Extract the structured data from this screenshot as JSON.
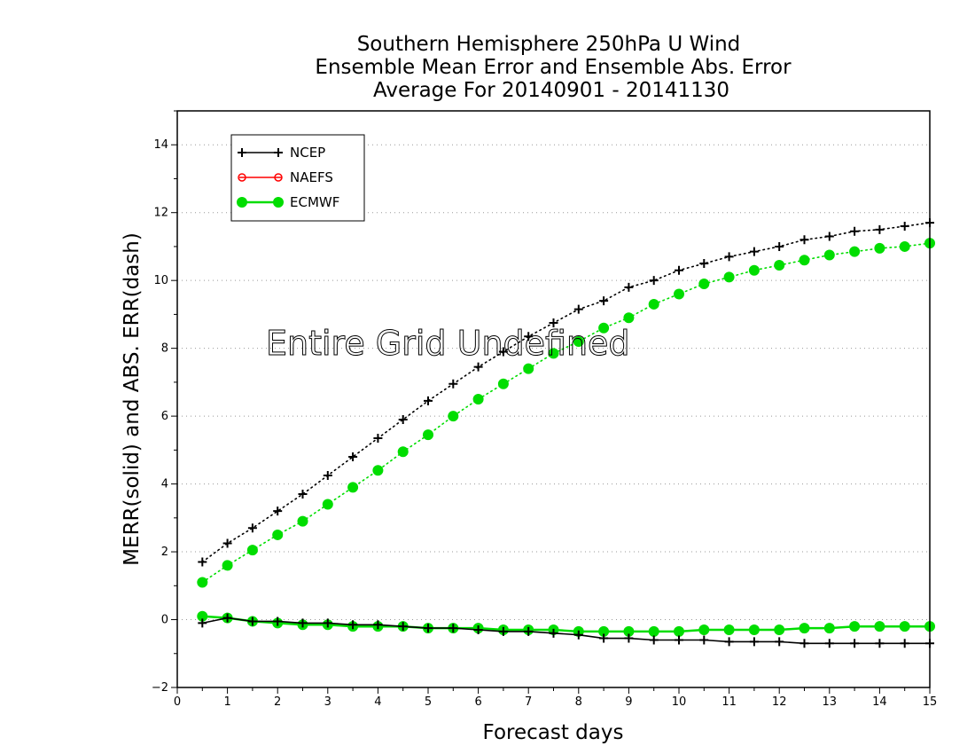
{
  "chart_data": {
    "type": "line",
    "title": [
      "Southern Hemisphere 250hPa U Wind",
      "Ensemble Mean Error and Ensemble Abs. Error",
      "Average For 20140901 - 20141130"
    ],
    "xlabel": "Forecast days",
    "ylabel": "MERR(solid) and ABS. ERR(dash)",
    "xlim": [
      0,
      15
    ],
    "ylim": [
      -2,
      15
    ],
    "xticks": [
      0,
      1,
      2,
      3,
      4,
      5,
      6,
      7,
      8,
      9,
      10,
      11,
      12,
      13,
      14,
      15
    ],
    "yticks": [
      -2,
      0,
      2,
      4,
      6,
      8,
      10,
      12,
      14
    ],
    "grid": "horizontal dotted",
    "legend_position": "top-left",
    "annotation": "Entire Grid Undefined",
    "x": [
      0.5,
      1,
      1.5,
      2,
      2.5,
      3,
      3.5,
      4,
      4.5,
      5,
      5.5,
      6,
      6.5,
      7,
      7.5,
      8,
      8.5,
      9,
      9.5,
      10,
      10.5,
      11,
      11.5,
      12,
      12.5,
      13,
      13.5,
      14,
      14.5,
      15
    ],
    "series": [
      {
        "name": "NCEP",
        "color": "#000000",
        "marker": "plus",
        "abs_err": [
          1.7,
          2.25,
          2.7,
          3.2,
          3.7,
          4.25,
          4.8,
          5.35,
          5.9,
          6.45,
          6.95,
          7.45,
          7.9,
          8.35,
          8.75,
          9.15,
          9.4,
          9.8,
          10.0,
          10.3,
          10.5,
          10.7,
          10.85,
          11.0,
          11.2,
          11.3,
          11.45,
          11.5,
          11.6,
          11.7
        ],
        "mean_err": [
          -0.1,
          0.05,
          -0.05,
          -0.05,
          -0.1,
          -0.1,
          -0.15,
          -0.15,
          -0.2,
          -0.25,
          -0.25,
          -0.3,
          -0.35,
          -0.35,
          -0.4,
          -0.45,
          -0.55,
          -0.55,
          -0.6,
          -0.6,
          -0.6,
          -0.65,
          -0.65,
          -0.65,
          -0.7,
          -0.7,
          -0.7,
          -0.7,
          -0.7,
          -0.7
        ]
      },
      {
        "name": "NAEFS",
        "color": "#ff0000",
        "marker": "open-circle",
        "abs_err": [],
        "mean_err": []
      },
      {
        "name": "ECMWF",
        "color": "#00dd00",
        "marker": "filled-circle",
        "abs_err": [
          1.1,
          1.6,
          2.05,
          2.5,
          2.9,
          3.4,
          3.9,
          4.4,
          4.95,
          5.45,
          6.0,
          6.5,
          6.95,
          7.4,
          7.85,
          8.2,
          8.6,
          8.9,
          9.3,
          9.6,
          9.9,
          10.1,
          10.3,
          10.45,
          10.6,
          10.75,
          10.85,
          10.95,
          11.0,
          11.1
        ],
        "mean_err": [
          0.1,
          0.05,
          -0.05,
          -0.1,
          -0.15,
          -0.15,
          -0.2,
          -0.2,
          -0.2,
          -0.25,
          -0.25,
          -0.25,
          -0.3,
          -0.3,
          -0.3,
          -0.35,
          -0.35,
          -0.35,
          -0.35,
          -0.35,
          -0.3,
          -0.3,
          -0.3,
          -0.3,
          -0.25,
          -0.25,
          -0.2,
          -0.2,
          -0.2,
          -0.2
        ]
      }
    ]
  }
}
